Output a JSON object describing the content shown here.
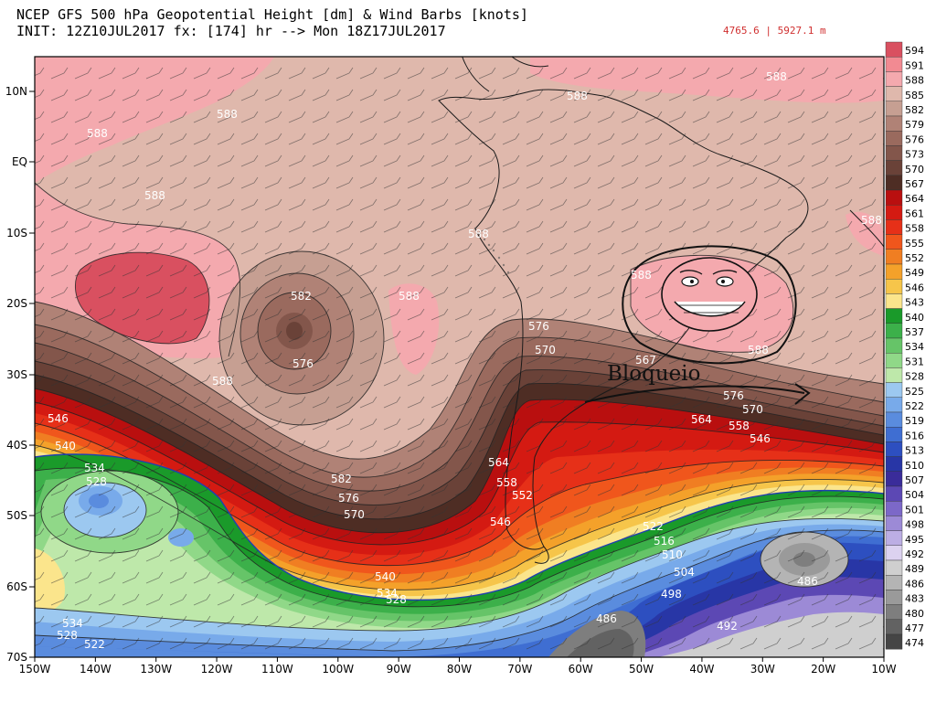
{
  "header": {
    "line1": "NCEP GFS 500 hPa Geopotential Height [dm] & Wind Barbs [knots]",
    "line2": "INIT: 12Z10JUL2017 fx: [174] hr --> Mon 18Z17JUL2017",
    "range": "4765.6 | 5927.1 m"
  },
  "annotation": {
    "text": "Bloqueio",
    "emoji": "troll-face-sticker"
  },
  "axes": {
    "lat_labels": [
      "10N",
      "EQ",
      "10S",
      "20S",
      "30S",
      "40S",
      "50S",
      "60S",
      "70S"
    ],
    "lon_labels": [
      "150W",
      "140W",
      "130W",
      "120W",
      "110W",
      "100W",
      "90W",
      "80W",
      "70W",
      "60W",
      "50W",
      "40W",
      "30W",
      "20W",
      "10W"
    ]
  },
  "colorbar": {
    "levels": [
      594,
      591,
      588,
      585,
      582,
      579,
      576,
      573,
      570,
      567,
      564,
      561,
      558,
      555,
      552,
      549,
      546,
      543,
      540,
      537,
      534,
      531,
      528,
      525,
      522,
      519,
      516,
      513,
      510,
      507,
      504,
      501,
      498,
      495,
      492,
      489,
      486,
      483,
      480,
      477,
      474
    ],
    "colors": [
      "#d95060",
      "#f28a92",
      "#f4a9ae",
      "#dfb8ac",
      "#c69f92",
      "#b08276",
      "#9a6a5e",
      "#83564b",
      "#6a4238",
      "#4e2d24",
      "#b90f0f",
      "#d41a12",
      "#e63018",
      "#f0561c",
      "#f07e22",
      "#f4a12a",
      "#f6c54a",
      "#fbe58c",
      "#1a9a2a",
      "#3cb04a",
      "#66c468",
      "#90d888",
      "#bee8aa",
      "#9cc8f0",
      "#78aaea",
      "#5a8cde",
      "#3f6ed2",
      "#2d4fc0",
      "#2836a6",
      "#3a2c9a",
      "#5c48b4",
      "#7c68c8",
      "#9c8ad6",
      "#bcaee4",
      "#dcd2f0",
      "#cfcfcf",
      "#b4b4b4",
      "#9a9a9a",
      "#7e7e7e",
      "#626262",
      "#454545"
    ]
  },
  "contour_labels": [
    {
      "text": "588"
    },
    {
      "text": "588"
    },
    {
      "text": "588"
    },
    {
      "text": "588"
    },
    {
      "text": "588"
    },
    {
      "text": "588"
    },
    {
      "text": "588"
    },
    {
      "text": "588"
    },
    {
      "text": "588"
    },
    {
      "text": "588"
    },
    {
      "text": "588"
    },
    {
      "text": "582"
    },
    {
      "text": "576"
    },
    {
      "text": "576"
    },
    {
      "text": "570"
    },
    {
      "text": "567"
    },
    {
      "text": "576"
    },
    {
      "text": "570"
    },
    {
      "text": "564"
    },
    {
      "text": "558"
    },
    {
      "text": "546"
    },
    {
      "text": "546"
    },
    {
      "text": "540"
    },
    {
      "text": "534"
    },
    {
      "text": "528"
    },
    {
      "text": "582"
    },
    {
      "text": "576"
    },
    {
      "text": "570"
    },
    {
      "text": "564"
    },
    {
      "text": "558"
    },
    {
      "text": "552"
    },
    {
      "text": "546"
    },
    {
      "text": "540"
    },
    {
      "text": "534"
    },
    {
      "text": "528"
    },
    {
      "text": "522"
    },
    {
      "text": "516"
    },
    {
      "text": "510"
    },
    {
      "text": "504"
    },
    {
      "text": "498"
    },
    {
      "text": "492"
    },
    {
      "text": "486"
    },
    {
      "text": "486"
    },
    {
      "text": "534"
    },
    {
      "text": "528"
    },
    {
      "text": "522"
    }
  ]
}
